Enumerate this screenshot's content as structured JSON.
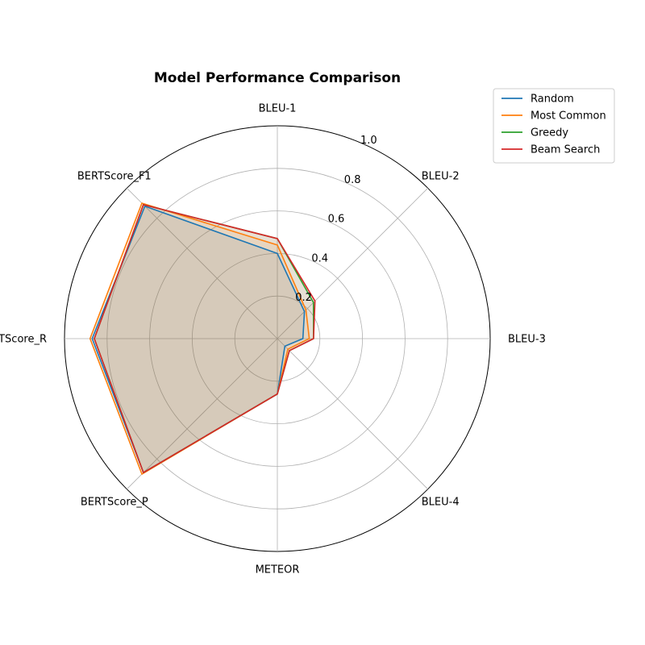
{
  "chart_data": {
    "type": "radar",
    "title": "Model Performance Comparison",
    "axes": [
      "BLEU-1",
      "BLEU-2",
      "BLEU-3",
      "BLEU-4",
      "METEOR",
      "BERTScore_P",
      "BERTScore_R",
      "BERTScore_F1"
    ],
    "rlim": [
      0,
      1.0
    ],
    "rticks": [
      "0.2",
      "0.4",
      "0.6",
      "0.8",
      "1.0"
    ],
    "rtick_values": [
      0.2,
      0.4,
      0.6,
      0.8,
      1.0
    ],
    "grid": true,
    "legend_position": "top-right",
    "series": [
      {
        "name": "Random",
        "color": "#1f77b4",
        "values": [
          0.4,
          0.18,
          0.12,
          0.05,
          0.26,
          0.89,
          0.87,
          0.88
        ]
      },
      {
        "name": "Most Common",
        "color": "#ff7f0e",
        "values": [
          0.44,
          0.19,
          0.15,
          0.07,
          0.26,
          0.9,
          0.88,
          0.9
        ]
      },
      {
        "name": "Greedy",
        "color": "#2ca02c",
        "values": [
          0.47,
          0.24,
          0.17,
          0.08,
          0.26,
          0.89,
          0.86,
          0.89
        ]
      },
      {
        "name": "Beam Search",
        "color": "#d62728",
        "values": [
          0.47,
          0.25,
          0.17,
          0.08,
          0.26,
          0.89,
          0.86,
          0.89
        ]
      }
    ]
  }
}
